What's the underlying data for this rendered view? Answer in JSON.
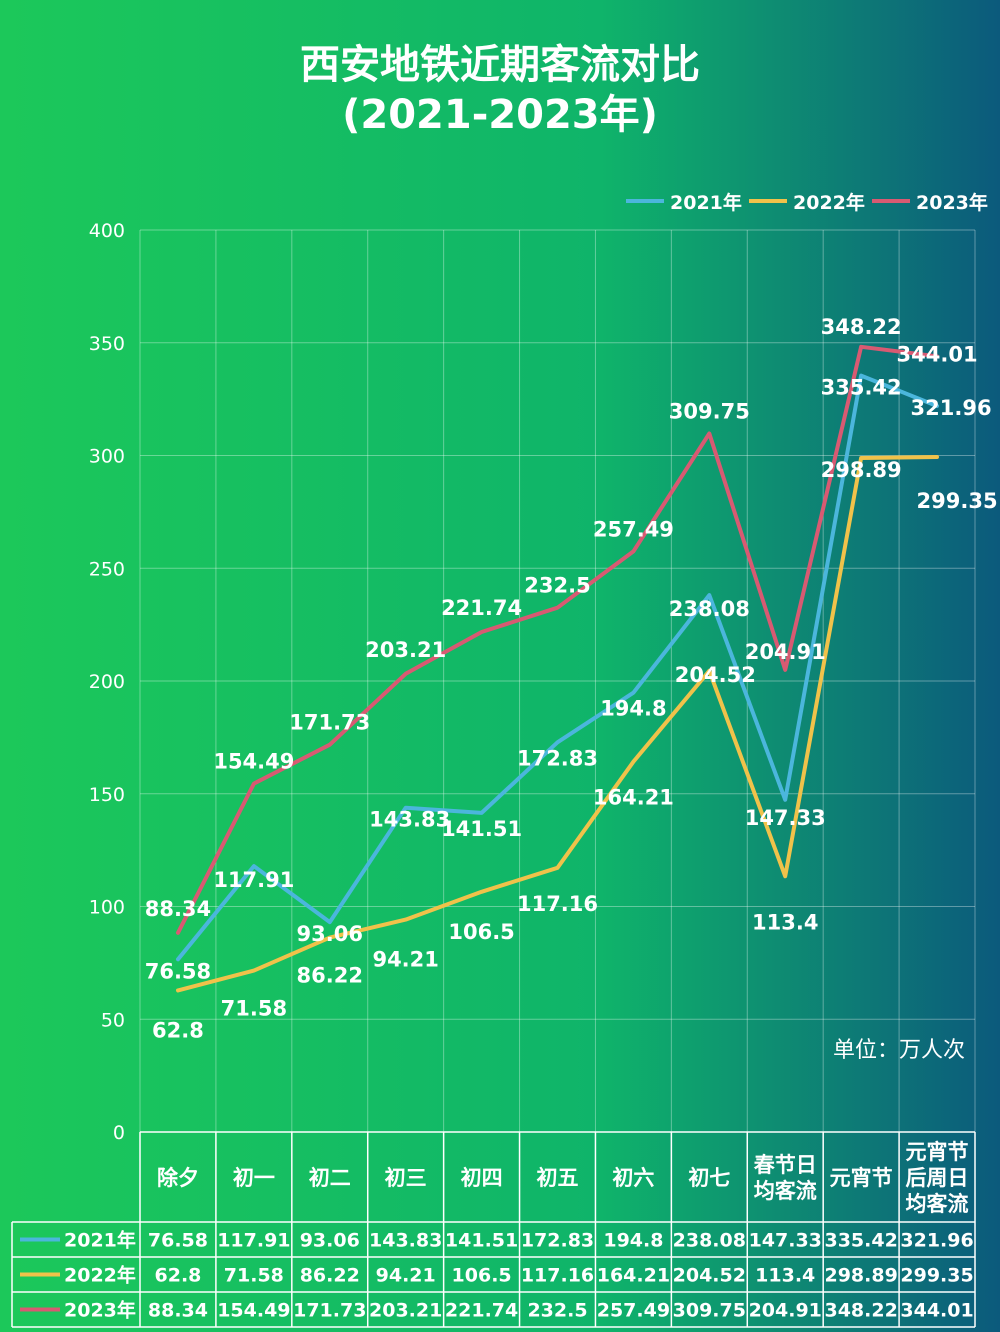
{
  "header": {
    "title_line1": "西安地铁近期客流对比",
    "title_line2": "(2021-2023年)"
  },
  "unit_label": "单位：万人次",
  "colors": {
    "bg_left": "#1cc85a",
    "bg_mid": "#0fb46a",
    "bg_right": "#0c5a7c",
    "series_2021": "#4bb6dc",
    "series_2022": "#f0c24a",
    "series_2023": "#d85a72",
    "grid": "#ffffff",
    "text": "#ffffff"
  },
  "chart_data": {
    "type": "line",
    "title": "西安地铁近期客流对比 (2021-2023年)",
    "categories": [
      [
        "除夕"
      ],
      [
        "初一"
      ],
      [
        "初二"
      ],
      [
        "初三"
      ],
      [
        "初四"
      ],
      [
        "初五"
      ],
      [
        "初六"
      ],
      [
        "初七"
      ],
      [
        "春节日",
        "均客流"
      ],
      [
        "元宵节"
      ],
      [
        "元宵节",
        "后周日",
        "均客流"
      ]
    ],
    "ylim": [
      0,
      400
    ],
    "yticks": [
      0,
      50,
      100,
      150,
      200,
      250,
      300,
      350,
      400
    ],
    "grid": true,
    "legend": "top-right",
    "series": [
      {
        "name": "2021年",
        "color_key": "series_2021",
        "values": [
          76.58,
          117.91,
          93.06,
          143.83,
          141.51,
          172.83,
          194.8,
          238.08,
          147.33,
          335.42,
          321.96
        ],
        "labels": [
          "76.58",
          "117.91",
          "93.06",
          "143.83",
          "141.51",
          "172.83",
          "194.8",
          "238.08",
          "147.33",
          "335.42",
          "321.96"
        ]
      },
      {
        "name": "2022年",
        "color_key": "series_2022",
        "values": [
          62.8,
          71.58,
          86.22,
          94.21,
          106.5,
          117.16,
          164.21,
          204.52,
          113.4,
          298.89,
          299.35
        ],
        "labels": [
          "62.8",
          "71.58",
          "86.22",
          "94.21",
          "106.5",
          "117.16",
          "164.21",
          "204.52",
          "113.4",
          "298.89",
          "299.35"
        ]
      },
      {
        "name": "2023年",
        "color_key": "series_2023",
        "values": [
          88.34,
          154.49,
          171.73,
          203.21,
          221.74,
          232.5,
          257.49,
          309.75,
          204.91,
          348.22,
          344.01
        ],
        "labels": [
          "88.34",
          "154.49",
          "171.73",
          "203.21",
          "221.74",
          "232.5",
          "257.49",
          "309.75",
          "204.91",
          "348.22",
          "344.01"
        ]
      }
    ]
  }
}
